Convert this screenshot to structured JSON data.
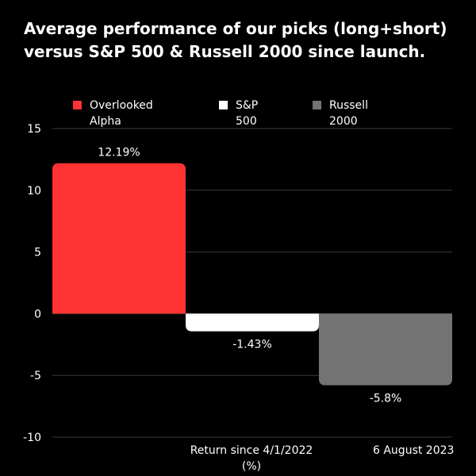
{
  "title_lines": [
    "Average performance of our picks (long+short)",
    "versus S&P 500 & Russell 2000 since launch."
  ],
  "chart_data": {
    "type": "bar",
    "categories": [
      "Overlooked Alpha",
      "S&P 500",
      "Russell 2000"
    ],
    "values": [
      12.19,
      -1.43,
      -5.8
    ],
    "value_labels": [
      "12.19%",
      "-1.43%",
      "-5.8%"
    ],
    "colors": [
      "#ff3333",
      "#ffffff",
      "#737373"
    ],
    "legend": [
      {
        "lines": [
          "Overlooked",
          "Alpha"
        ],
        "color": "#ff3333"
      },
      {
        "lines": [
          "S&P",
          "500"
        ],
        "color": "#ffffff"
      },
      {
        "lines": [
          "Russell",
          "2000"
        ],
        "color": "#737373"
      }
    ],
    "legend_position": "top",
    "xlabel_lines": [
      "Return since 4/1/2022",
      "(%)"
    ],
    "ylim": [
      -10,
      15
    ],
    "yticks": [
      15,
      10,
      5,
      0,
      -5,
      -10
    ],
    "grid": true
  },
  "date_note": "6 August 2023"
}
